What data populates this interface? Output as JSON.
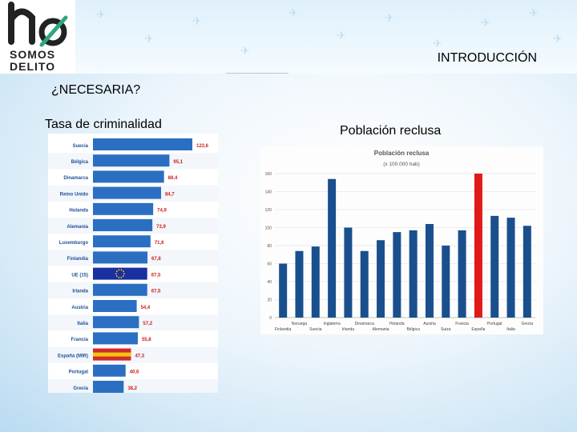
{
  "slide": {
    "logo_top": "SOMOS",
    "logo_bottom": "DELITO",
    "section_title": "INTRODUCCIÓN",
    "subtitle": "¿NECESARIA?",
    "left_heading": "Tasa de criminalidad",
    "right_heading": "Población reclusa"
  },
  "chart_data": [
    {
      "type": "bar",
      "orientation": "horizontal",
      "categories": [
        "Suecia",
        "Bélgica",
        "Dinamarca",
        "Reino Unido",
        "Holanda",
        "Alemania",
        "Luxemburgo",
        "Finlandia",
        "UE (15)",
        "Irlanda",
        "Austria",
        "Italia",
        "Francia",
        "España (MIR)",
        "Portugal",
        "Grecia"
      ],
      "values": [
        123.6,
        95.1,
        88.4,
        84.7,
        74.9,
        73.9,
        71.6,
        67.8,
        67.5,
        67.5,
        54.4,
        57.2,
        55.8,
        47.3,
        40.6,
        38.2
      ],
      "value_labels": [
        "123,6",
        "95,1",
        "88,4",
        "84,7",
        "74,9",
        "73,9",
        "71,6",
        "67,8",
        "67,5",
        "67,5",
        "54,4",
        "57,2",
        "55,8",
        "47,3",
        "40,6",
        "38,2"
      ],
      "highlight": [
        "UE (15)",
        "España (MIR)"
      ],
      "colors": {
        "bar": "#2a6fc2",
        "label": "#cc1f1f",
        "category": "#1f4f9a"
      }
    },
    {
      "type": "bar",
      "title": "Población reclusa",
      "subtitle": "(x 100.000 hab)",
      "categories": [
        "Finlandia",
        "Noruega",
        "Suecia",
        "Inglaterra",
        "Irlanda",
        "Dinamarca",
        "Alemania",
        "Holanda",
        "Bélgica",
        "Austria",
        "Suiza",
        "Francia",
        "España",
        "Portugal",
        "Italia",
        "Grecia"
      ],
      "x_labels_lower": [
        "Finlandia",
        "Suecia",
        "Irlanda",
        "Alemania",
        "Bélgica",
        "Suiza",
        "España",
        "Italia"
      ],
      "x_labels_upper": [
        "Noruega",
        "Inglaterra",
        "Dinamarca",
        "Holanda",
        "Austria",
        "Francia",
        "Portugal",
        "Grecia"
      ],
      "values": [
        60,
        74,
        79,
        154,
        100,
        74,
        86,
        95,
        97,
        104,
        80,
        97,
        160,
        113,
        111,
        102
      ],
      "highlight": [
        "España"
      ],
      "ylim": [
        0,
        160
      ],
      "yticks": [
        0,
        20,
        40,
        60,
        80,
        100,
        120,
        140,
        160
      ],
      "grid": true,
      "colors": {
        "bar": "#1a4f8e",
        "highlight": "#e01a1a"
      }
    }
  ]
}
